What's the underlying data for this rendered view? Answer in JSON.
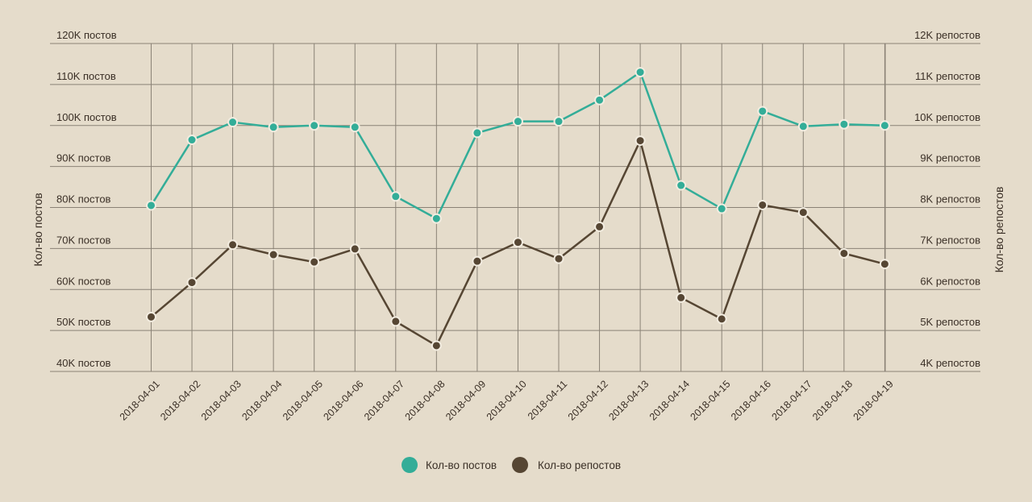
{
  "colors": {
    "background": "#e5dccb",
    "grid": "#8a8276",
    "text": "#3a2f26",
    "series_posts": "#33ad98",
    "series_reposts": "#564633"
  },
  "chart_data": {
    "type": "line",
    "x": [
      "2018-04-01",
      "2018-04-02",
      "2018-04-03",
      "2018-04-04",
      "2018-04-05",
      "2018-04-06",
      "2018-04-07",
      "2018-04-08",
      "2018-04-09",
      "2018-04-10",
      "2018-04-11",
      "2018-04-12",
      "2018-04-13",
      "2018-04-14",
      "2018-04-15",
      "2018-04-16",
      "2018-04-17",
      "2018-04-18",
      "2018-04-19"
    ],
    "ylabel_left": "Кол-во постов",
    "ylabel_right": "Кол-во репостов",
    "ylim_left": [
      40000,
      120000
    ],
    "ylim_right": [
      4000,
      12000
    ],
    "yticks_left": [
      "40K постов",
      "50K постов",
      "60K постов",
      "70K постов",
      "80K постов",
      "90K постов",
      "100K постов",
      "110K постов",
      "120K постов"
    ],
    "yticks_right": [
      "4K репостов",
      "5K репостов",
      "6K репостов",
      "7K репостов",
      "8K репостов",
      "9K репостов",
      "10K репостов",
      "11K репостов",
      "12K репостов"
    ],
    "grid": true,
    "legend_position": "bottom-center",
    "series": [
      {
        "name": "Кол-во постов",
        "axis": "left",
        "color": "#33ad98",
        "values": [
          80500,
          96500,
          100800,
          99600,
          100000,
          99600,
          82700,
          77300,
          98200,
          101000,
          101000,
          106200,
          113000,
          85400,
          79700,
          103500,
          99800,
          100300,
          100000
        ]
      },
      {
        "name": "Кол-во репостов",
        "axis": "right",
        "color": "#564633",
        "values": [
          5330,
          6170,
          7090,
          6850,
          6670,
          6990,
          5220,
          4630,
          6690,
          7150,
          6750,
          7530,
          9630,
          5800,
          5280,
          8060,
          7880,
          6880,
          6620
        ]
      }
    ]
  }
}
